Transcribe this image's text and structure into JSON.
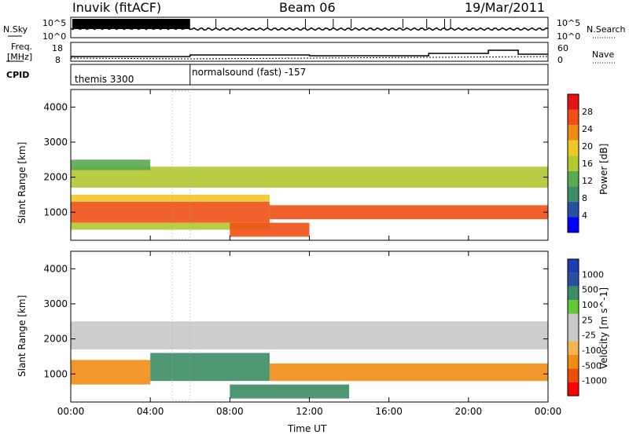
{
  "header": {
    "left_title": "Inuvik (fitACF)",
    "center_title": "Beam 06",
    "right_title": "19/Mar/2011"
  },
  "nsky_panel": {
    "left_label": "N.Sky",
    "right_label": "N.Search",
    "tick_top": "10^5",
    "tick_bottom": "10^0",
    "tick_top_right": "10^5",
    "tick_bottom_right": "10^0"
  },
  "freq_panel": {
    "left_label_1": "Freq.",
    "left_label_2": "[MHz]",
    "right_label": "Nave",
    "left_ticks": [
      "18",
      "8"
    ],
    "right_ticks": [
      "60",
      "0"
    ]
  },
  "cpid": {
    "label": "CPID",
    "modes": [
      "themis 3300",
      "normalsound (fast) -157"
    ]
  },
  "axes": {
    "ylabel": "Slant Range [km]",
    "xlabel": "Time UT",
    "y_ticks": [
      "1000",
      "2000",
      "3000",
      "4000"
    ],
    "x_ticks": [
      "00:00",
      "04:00",
      "08:00",
      "12:00",
      "16:00",
      "20:00",
      "00:00"
    ]
  },
  "colors": {
    "power_scale": [
      "#0000ff",
      "#2850a0",
      "#3c8c64",
      "#5aaa50",
      "#b4c832",
      "#f0c828",
      "#f08c14",
      "#f05014",
      "#e61414"
    ],
    "velocity_scale": [
      "#ff0000",
      "#e65000",
      "#f08c14",
      "#f5b450",
      "#c8c8c8",
      "#c8c8c8",
      "#64c832",
      "#3c8c64",
      "#2850a0",
      "#1e3cb4"
    ]
  },
  "chart_data": [
    {
      "type": "heatmap",
      "panel": "power",
      "title": "",
      "xlabel": "Time UT",
      "ylabel": "Slant Range [km]",
      "xlim": [
        "00:00",
        "24:00"
      ],
      "ylim": [
        200,
        4500
      ],
      "colorbar_label": "Power [dB]",
      "colorbar_ticks": [
        "4",
        "8",
        "12",
        "16",
        "20",
        "24",
        "28"
      ],
      "bands": [
        {
          "t_start": 0.0,
          "t_end": 10.0,
          "r_min": 700,
          "r_max": 1300,
          "level": 28
        },
        {
          "t_start": 0.0,
          "t_end": 10.0,
          "r_min": 1300,
          "r_max": 1500,
          "level": 20
        },
        {
          "t_start": 0.0,
          "t_end": 10.0,
          "r_min": 500,
          "r_max": 700,
          "level": 16
        },
        {
          "t_start": 10.0,
          "t_end": 24.0,
          "r_min": 800,
          "r_max": 1200,
          "level": 28
        },
        {
          "t_start": 0.0,
          "t_end": 24.0,
          "r_min": 1700,
          "r_max": 2300,
          "level": 16
        },
        {
          "t_start": 0.0,
          "t_end": 4.0,
          "r_min": 2200,
          "r_max": 2500,
          "level": 12
        },
        {
          "t_start": 8.0,
          "t_end": 12.0,
          "r_min": 300,
          "r_max": 700,
          "level": 28
        }
      ]
    },
    {
      "type": "heatmap",
      "panel": "velocity",
      "title": "",
      "xlabel": "Time UT",
      "ylabel": "Slant Range [km]",
      "xlim": [
        "00:00",
        "24:00"
      ],
      "ylim": [
        200,
        4500
      ],
      "colorbar_label": "Velocity [m s^-1]",
      "colorbar_ticks": [
        "-1000",
        "-500",
        "-100",
        "-25",
        "25",
        "100",
        "500",
        "1000"
      ],
      "bands": [
        {
          "t_start": 0.0,
          "t_end": 4.0,
          "r_min": 700,
          "r_max": 1400,
          "level": -300
        },
        {
          "t_start": 4.0,
          "t_end": 10.0,
          "r_min": 800,
          "r_max": 1600,
          "level": 300
        },
        {
          "t_start": 10.0,
          "t_end": 24.0,
          "r_min": 800,
          "r_max": 1300,
          "level": -300
        },
        {
          "t_start": 0.0,
          "t_end": 24.0,
          "r_min": 1700,
          "r_max": 2500,
          "level": 0
        },
        {
          "t_start": 8.0,
          "t_end": 14.0,
          "r_min": 300,
          "r_max": 700,
          "level": 300
        }
      ]
    }
  ]
}
